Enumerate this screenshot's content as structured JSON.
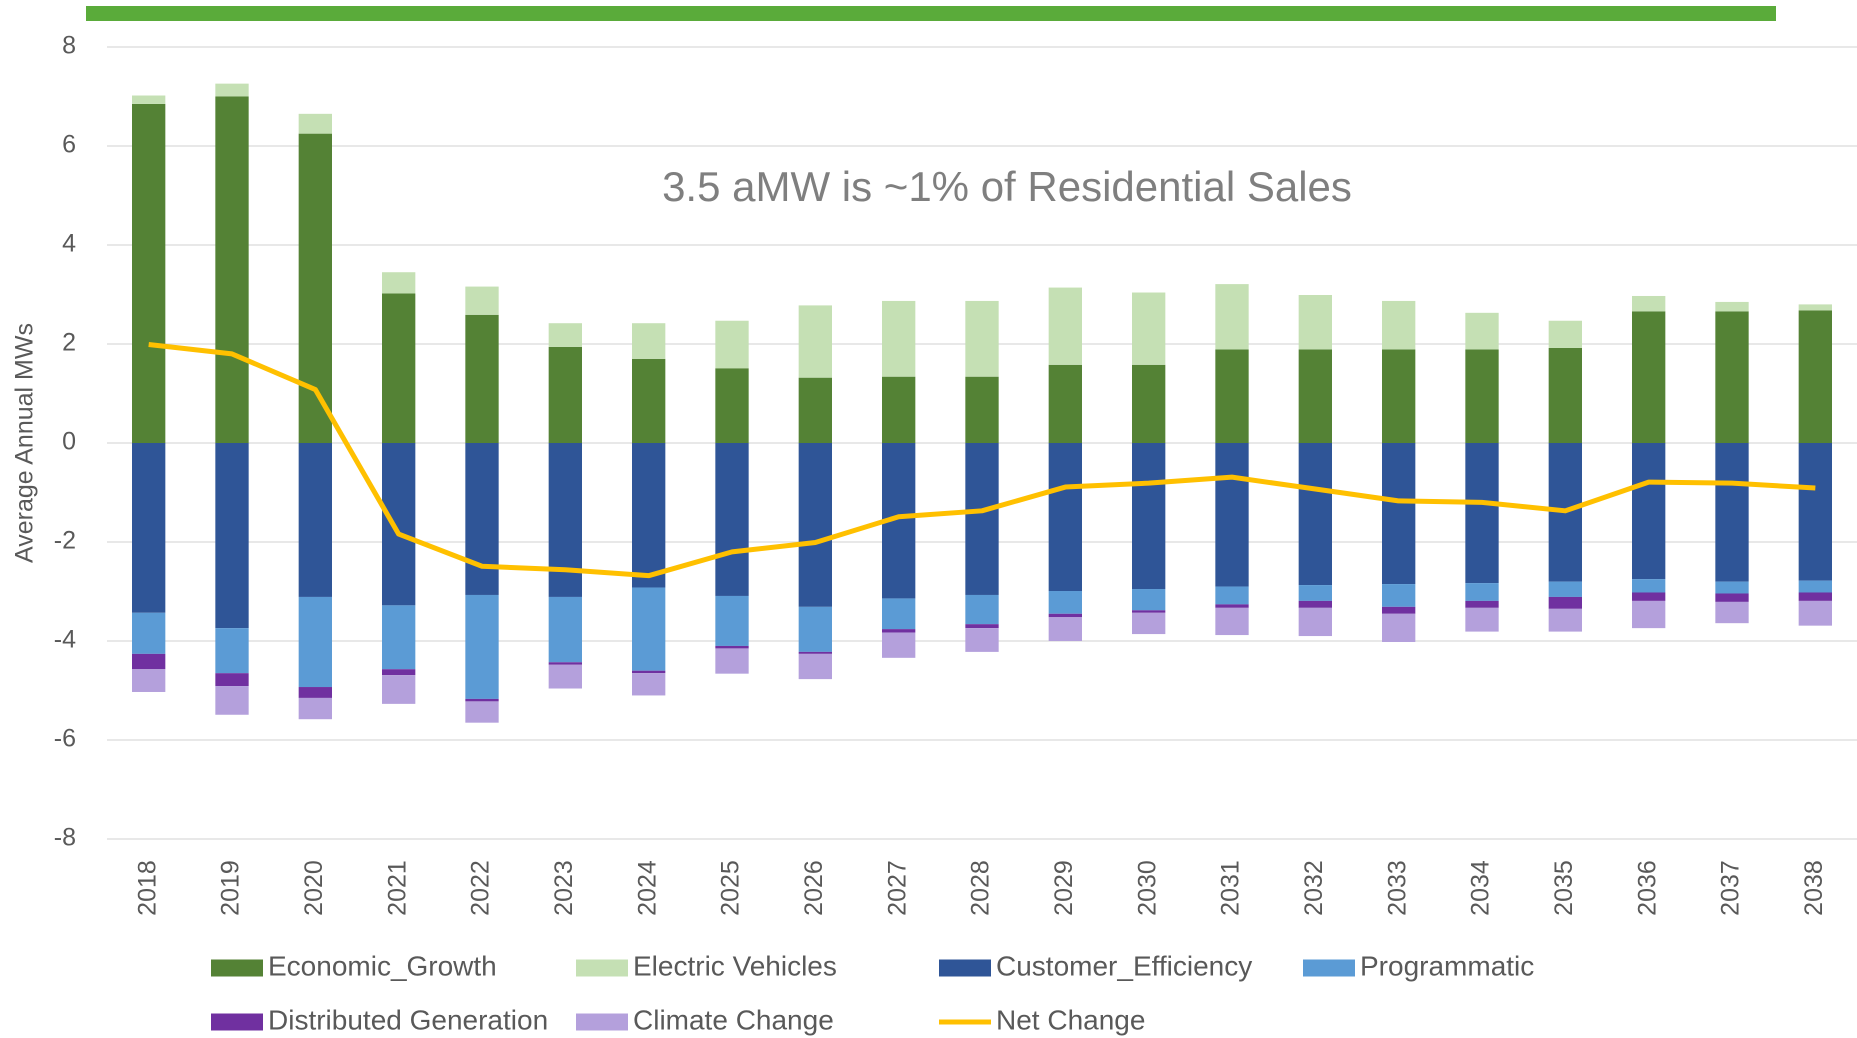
{
  "chart_data": {
    "type": "bar",
    "stacked": true,
    "annotation": "3.5 aMW is ~1% of Residential Sales",
    "y_label": "Average Annual MWs",
    "categories": [
      "2018",
      "2019",
      "2020",
      "2021",
      "2022",
      "2023",
      "2024",
      "2025",
      "2026",
      "2027",
      "2028",
      "2029",
      "2030",
      "2031",
      "2032",
      "2033",
      "2034",
      "2035",
      "2036",
      "2037",
      "2038"
    ],
    "ylim": [
      -8,
      8
    ],
    "yticks": [
      -8,
      -6,
      -4,
      -2,
      0,
      2,
      4,
      6,
      8
    ],
    "grid": true,
    "legend": "bottom",
    "series": [
      {
        "name": "Economic_Growth",
        "color": "#548235",
        "values": [
          6.85,
          7.0,
          6.25,
          3.02,
          2.59,
          1.94,
          1.7,
          1.51,
          1.32,
          1.34,
          1.34,
          1.58,
          1.58,
          1.89,
          1.89,
          1.89,
          1.89,
          1.92,
          2.66,
          2.66,
          2.68
        ]
      },
      {
        "name": "Electric Vehicles",
        "color": "#c5e0b4",
        "values": [
          0.17,
          0.26,
          0.4,
          0.43,
          0.57,
          0.48,
          0.72,
          0.96,
          1.46,
          1.53,
          1.53,
          1.56,
          1.46,
          1.32,
          1.1,
          0.98,
          0.74,
          0.55,
          0.31,
          0.19,
          0.12
        ]
      },
      {
        "name": "Customer_Efficiency",
        "color": "#2f5597",
        "values": [
          -3.43,
          -3.74,
          -3.11,
          -3.28,
          -3.07,
          -3.11,
          -2.92,
          -3.09,
          -3.31,
          -3.14,
          -3.07,
          -2.99,
          -2.95,
          -2.9,
          -2.87,
          -2.85,
          -2.83,
          -2.8,
          -2.75,
          -2.8,
          -2.78
        ]
      },
      {
        "name": "Programmatic",
        "color": "#5b9bd5",
        "values": [
          -0.83,
          -0.91,
          -1.82,
          -1.29,
          -2.1,
          -1.32,
          -1.68,
          -1.01,
          -0.91,
          -0.62,
          -0.59,
          -0.46,
          -0.43,
          -0.36,
          -0.32,
          -0.46,
          -0.36,
          -0.31,
          -0.27,
          -0.24,
          -0.24
        ]
      },
      {
        "name": "Distributed Generation",
        "color": "#7030a0",
        "values": [
          -0.31,
          -0.26,
          -0.22,
          -0.12,
          -0.05,
          -0.05,
          -0.05,
          -0.05,
          -0.04,
          -0.07,
          -0.08,
          -0.07,
          -0.05,
          -0.07,
          -0.14,
          -0.14,
          -0.14,
          -0.24,
          -0.17,
          -0.17,
          -0.17
        ]
      },
      {
        "name": "Climate Change",
        "color": "#b4a0dc",
        "values": [
          -0.46,
          -0.58,
          -0.43,
          -0.58,
          -0.43,
          -0.48,
          -0.45,
          -0.51,
          -0.51,
          -0.51,
          -0.48,
          -0.48,
          -0.43,
          -0.55,
          -0.57,
          -0.57,
          -0.48,
          -0.46,
          -0.55,
          -0.43,
          -0.5
        ]
      },
      {
        "name": "Net Change",
        "color": "#ffc000",
        "type": "line",
        "values": [
          1.99,
          1.8,
          1.08,
          -1.84,
          -2.49,
          -2.56,
          -2.68,
          -2.2,
          -2.01,
          -1.49,
          -1.37,
          -0.89,
          -0.81,
          -0.69,
          -0.93,
          -1.17,
          -1.2,
          -1.37,
          -0.79,
          -0.81,
          -0.91
        ]
      }
    ]
  }
}
